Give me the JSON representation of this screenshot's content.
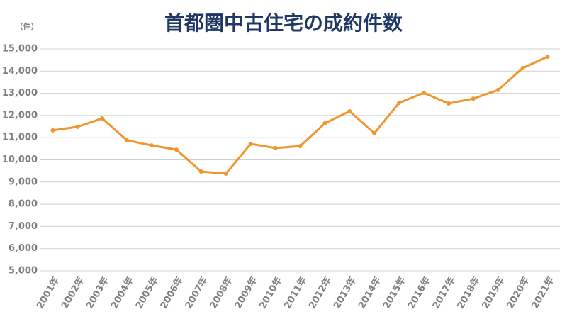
{
  "chart_data": {
    "type": "line",
    "title": "首都圏中古住宅の成約件数",
    "y_label": "（件）",
    "categories": [
      "2001年",
      "2002年",
      "2003年",
      "2004年",
      "2005年",
      "2006年",
      "2007年",
      "2008年",
      "2009年",
      "2010年",
      "2011年",
      "2012年",
      "2013年",
      "2014年",
      "2015年",
      "2016年",
      "2017年",
      "2018年",
      "2019年",
      "2020年",
      "2021年"
    ],
    "series": [
      {
        "name": "成約件数",
        "color": "#f0962e",
        "values": [
          11330,
          11490,
          11870,
          10880,
          10650,
          10460,
          9470,
          9380,
          10720,
          10530,
          10620,
          11650,
          12190,
          11200,
          12570,
          13020,
          12540,
          12760,
          13150,
          14140,
          14650
        ]
      }
    ],
    "ylim": [
      5000,
      15000
    ],
    "yticks": [
      {
        "value": 5000,
        "label": "5,000"
      },
      {
        "value": 6000,
        "label": "6,000"
      },
      {
        "value": 7000,
        "label": "7,000"
      },
      {
        "value": 8000,
        "label": "8,000"
      },
      {
        "value": 9000,
        "label": "9,000"
      },
      {
        "value": 10000,
        "label": "10,000"
      },
      {
        "value": 11000,
        "label": "11,000"
      },
      {
        "value": 12000,
        "label": "12,000"
      },
      {
        "value": 13000,
        "label": "13,000"
      },
      {
        "value": 14000,
        "label": "14,000"
      },
      {
        "value": 15000,
        "label": "15,000"
      }
    ],
    "grid": true
  }
}
